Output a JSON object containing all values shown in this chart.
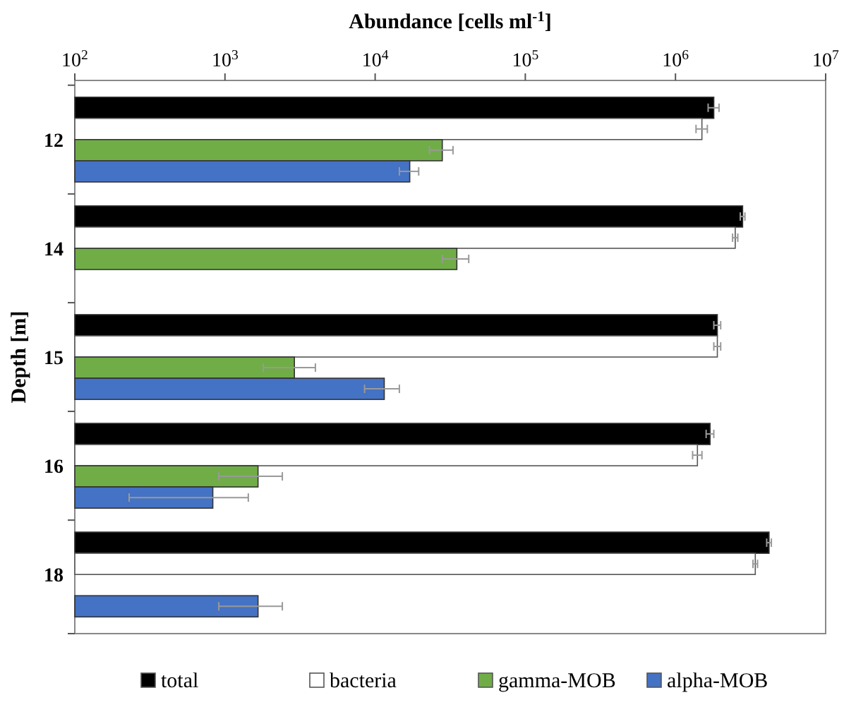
{
  "chart_data": {
    "type": "bar",
    "orientation": "horizontal",
    "log": "x",
    "xlabel": "Abundance [cells ml$^{-1}$]",
    "ylabel": "Depth [m]",
    "categories": [
      "12",
      "14",
      "15",
      "16",
      "18"
    ],
    "xlim": [
      100,
      10000000
    ],
    "xticks": [
      {
        "value": 100,
        "label": "10$^{2}$"
      },
      {
        "value": 1000,
        "label": "10$^{3}$"
      },
      {
        "value": 10000,
        "label": "10$^{4}$"
      },
      {
        "value": 100000,
        "label": "10$^{5}$"
      },
      {
        "value": 1000000,
        "label": "10$^{6}$"
      },
      {
        "value": 10000000,
        "label": "10$^{7}$"
      }
    ],
    "series": [
      {
        "name": "total",
        "color": "#000000",
        "values": [
          1800000,
          2800000,
          1900000,
          1700000,
          4200000
        ],
        "errors": [
          150000,
          100000,
          100000,
          100000,
          150000
        ]
      },
      {
        "name": "bacteria",
        "color": "#ffffff",
        "values": [
          1500000,
          2500000,
          1900000,
          1400000,
          3400000
        ],
        "errors": [
          130000,
          100000,
          100000,
          100000,
          120000
        ]
      },
      {
        "name": "gamma-MOB",
        "color": "#70ad47",
        "values": [
          28000,
          35000,
          2900,
          1660,
          null
        ],
        "errors": [
          5000,
          7000,
          1100,
          750,
          null
        ]
      },
      {
        "name": "alpha-MOB",
        "color": "#4472c4",
        "values": [
          17000,
          null,
          11500,
          830,
          1660
        ],
        "errors": [
          2500,
          null,
          3000,
          600,
          750
        ]
      }
    ],
    "grid": false,
    "legend": "bottom"
  }
}
